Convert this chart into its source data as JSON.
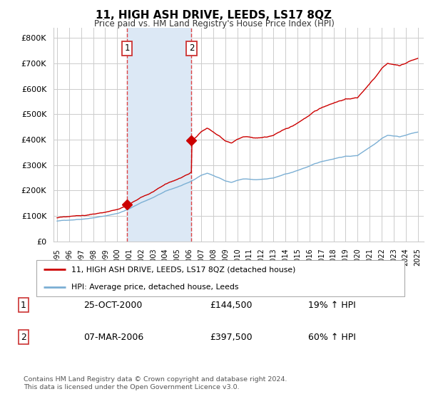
{
  "title": "11, HIGH ASH DRIVE, LEEDS, LS17 8QZ",
  "subtitle": "Price paid vs. HM Land Registry's House Price Index (HPI)",
  "ylabel_ticks": [
    "£0",
    "£100K",
    "£200K",
    "£300K",
    "£400K",
    "£500K",
    "£600K",
    "£700K",
    "£800K"
  ],
  "ytick_values": [
    0,
    100000,
    200000,
    300000,
    400000,
    500000,
    600000,
    700000,
    800000
  ],
  "ylim": [
    0,
    840000
  ],
  "xlim_start": 1994.7,
  "xlim_end": 2025.5,
  "sale1_x": 2000.81,
  "sale1_y": 144500,
  "sale1_label": "1",
  "sale2_x": 2006.18,
  "sale2_y": 397500,
  "sale2_label": "2",
  "sale_color": "#cc0000",
  "hpi_color": "#7bafd4",
  "vline_color": "#dd4444",
  "span_color": "#dce8f5",
  "background_color": "#ffffff",
  "grid_color": "#cccccc",
  "legend_line1": "11, HIGH ASH DRIVE, LEEDS, LS17 8QZ (detached house)",
  "legend_line2": "HPI: Average price, detached house, Leeds",
  "table_row1_num": "1",
  "table_row1_date": "25-OCT-2000",
  "table_row1_price": "£144,500",
  "table_row1_hpi": "19% ↑ HPI",
  "table_row2_num": "2",
  "table_row2_date": "07-MAR-2006",
  "table_row2_price": "£397,500",
  "table_row2_hpi": "60% ↑ HPI",
  "footer": "Contains HM Land Registry data © Crown copyright and database right 2024.\nThis data is licensed under the Open Government Licence v3.0."
}
